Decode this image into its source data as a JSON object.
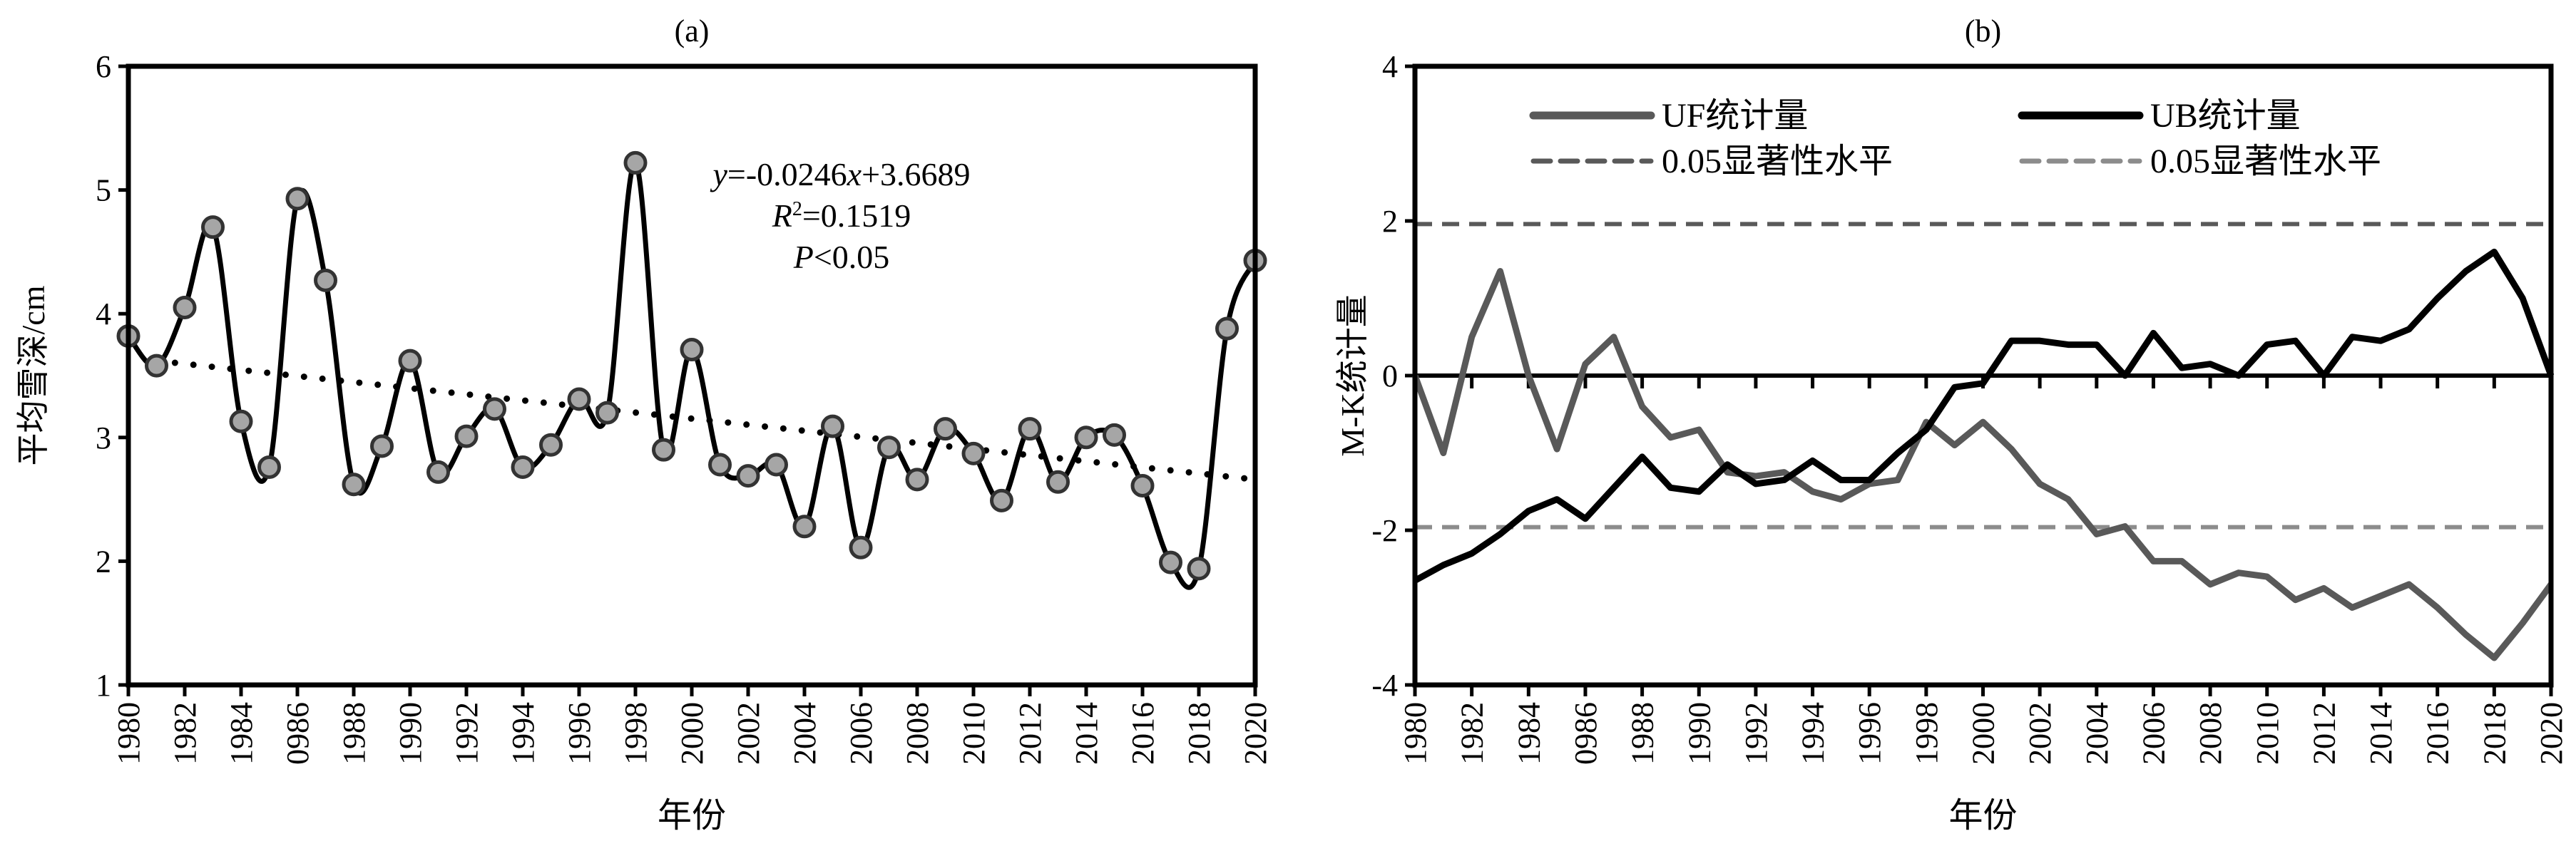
{
  "chart_data": [
    {
      "type": "line",
      "title": "(a)",
      "xlabel": "年份",
      "ylabel": "平均雪深/cm",
      "ylim": [
        1,
        6
      ],
      "xlim": [
        1980,
        2020
      ],
      "yticks": [
        "1",
        "2",
        "3",
        "4",
        "5",
        "6"
      ],
      "xtick_labels": [
        "1980",
        "1982",
        "1984",
        "0986",
        "1988",
        "1990",
        "1992",
        "1994",
        "1996",
        "1998",
        "2000",
        "2002",
        "2004",
        "2006",
        "2008",
        "2010",
        "2012",
        "2014",
        "2016",
        "2018",
        "2020"
      ],
      "x": [
        1980,
        1981,
        1982,
        1983,
        1984,
        1985,
        1986,
        1987,
        1988,
        1989,
        1990,
        1991,
        1992,
        1993,
        1994,
        1995,
        1996,
        1997,
        1998,
        1999,
        2000,
        2001,
        2002,
        2003,
        2004,
        2005,
        2006,
        2007,
        2008,
        2009,
        2010,
        2011,
        2012,
        2013,
        2014,
        2015,
        2016,
        2017,
        2018,
        2019,
        2020
      ],
      "series": [
        {
          "name": "平均雪深",
          "color": "#000000",
          "marker_fill": "#a6a6a6",
          "values": [
            3.82,
            3.58,
            4.05,
            4.7,
            3.13,
            2.76,
            4.93,
            4.27,
            2.62,
            2.93,
            3.62,
            2.72,
            3.01,
            3.23,
            2.76,
            2.94,
            3.31,
            3.2,
            5.22,
            2.9,
            3.71,
            2.78,
            2.69,
            2.78,
            2.28,
            3.09,
            2.11,
            2.92,
            2.66,
            3.07,
            2.87,
            2.49,
            3.07,
            2.64,
            3.0,
            3.02,
            2.61,
            1.99,
            1.94,
            3.88,
            4.43
          ]
        }
      ],
      "trendline": {
        "slope": -0.0246,
        "intercept": 3.6689,
        "style": "dotted"
      },
      "annotation": {
        "equation_y": "y",
        "equation_rest": "=-0.0246",
        "equation_x": "x",
        "equation_tail": "+3.6689",
        "r2_label": "R",
        "r2_sup": "2",
        "r2_value": "=0.1519",
        "p_label": "P",
        "p_value": "<0.05"
      },
      "grid": false
    },
    {
      "type": "line",
      "title": "(b)",
      "xlabel": "年份",
      "ylabel": "M-K统计量",
      "ylim": [
        -4,
        4
      ],
      "xlim": [
        1980,
        2020
      ],
      "yticks": [
        "-4",
        "-2",
        "0",
        "2",
        "4"
      ],
      "xtick_labels": [
        "1980",
        "1982",
        "1984",
        "0986",
        "1988",
        "1990",
        "1992",
        "1994",
        "1996",
        "1998",
        "2000",
        "2002",
        "2004",
        "2006",
        "2008",
        "2010",
        "2012",
        "2014",
        "2016",
        "2018",
        "2020"
      ],
      "x": [
        1980,
        1981,
        1982,
        1983,
        1984,
        1985,
        1986,
        1987,
        1988,
        1989,
        1990,
        1991,
        1992,
        1993,
        1994,
        1995,
        1996,
        1997,
        1998,
        1999,
        2000,
        2001,
        2002,
        2003,
        2004,
        2005,
        2006,
        2007,
        2008,
        2009,
        2010,
        2011,
        2012,
        2013,
        2014,
        2015,
        2016,
        2017,
        2018,
        2019,
        2020
      ],
      "series": [
        {
          "name": "UF统计量",
          "color": "#595959",
          "values": [
            0,
            -1.0,
            0.5,
            1.35,
            0,
            -0.95,
            0.15,
            0.5,
            -0.4,
            -0.8,
            -0.7,
            -1.25,
            -1.3,
            -1.25,
            -1.5,
            -1.6,
            -1.4,
            -1.35,
            -0.6,
            -0.9,
            -0.6,
            -0.95,
            -1.4,
            -1.6,
            -2.05,
            -1.95,
            -2.4,
            -2.4,
            -2.7,
            -2.55,
            -2.6,
            -2.9,
            -2.75,
            -3.0,
            -2.85,
            -2.7,
            -3.0,
            -3.35,
            -3.65,
            -3.2,
            -2.7
          ]
        },
        {
          "name": "UB统计量",
          "color": "#000000",
          "values": [
            -2.65,
            -2.45,
            -2.3,
            -2.05,
            -1.75,
            -1.6,
            -1.85,
            -1.45,
            -1.05,
            -1.45,
            -1.5,
            -1.15,
            -1.4,
            -1.35,
            -1.1,
            -1.35,
            -1.35,
            -1.0,
            -0.7,
            -0.15,
            -0.1,
            0.45,
            0.45,
            0.4,
            0.4,
            0.0,
            0.55,
            0.1,
            0.15,
            0.0,
            0.4,
            0.45,
            0.0,
            0.5,
            0.45,
            0.6,
            1.0,
            1.35,
            1.6,
            1.0,
            0.0
          ]
        }
      ],
      "reference_lines": [
        {
          "name": "0.05显著性水平",
          "value": 1.96,
          "color": "#595959",
          "style": "dashed"
        },
        {
          "name": "0.05显著性水平",
          "value": -1.96,
          "color": "#8c8c8c",
          "style": "dashed"
        }
      ],
      "legend": {
        "placement": "top",
        "entries": [
          "UF统计量",
          "UB统计量",
          "0.05显著性水平",
          "0.05显著性水平"
        ]
      },
      "grid": false
    }
  ]
}
